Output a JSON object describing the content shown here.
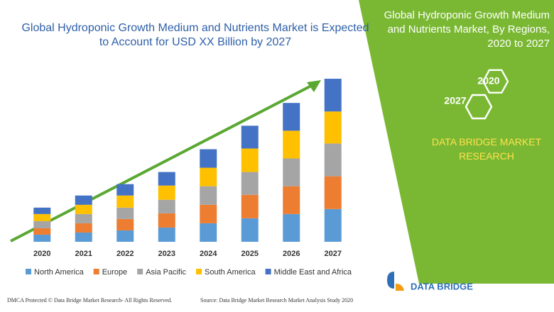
{
  "chart_data": {
    "type": "stacked-bar",
    "title": "Global Hydroponic Growth Medium and Nutrients Market is Expected to Account for USD XX Billion by 2027",
    "categories": [
      "2020",
      "2021",
      "2022",
      "2023",
      "2024",
      "2025",
      "2026",
      "2027"
    ],
    "series": [
      {
        "name": "North America",
        "color": "#5b9bd5",
        "values": [
          10,
          13,
          16,
          20,
          26,
          33,
          39,
          46
        ]
      },
      {
        "name": "Europe",
        "color": "#ed7d31",
        "values": [
          9,
          13,
          16,
          20,
          26,
          33,
          39,
          46
        ]
      },
      {
        "name": "Asia Pacific",
        "color": "#a5a5a5",
        "values": [
          10,
          13,
          16,
          19,
          26,
          32,
          39,
          46
        ]
      },
      {
        "name": "South America",
        "color": "#ffc000",
        "values": [
          10,
          13,
          17,
          20,
          26,
          33,
          39,
          45
        ]
      },
      {
        "name": "Middle East and Africa",
        "color": "#4472c4",
        "values": [
          9,
          13,
          16,
          19,
          26,
          32,
          39,
          46
        ]
      }
    ],
    "ylim": [
      0,
      240
    ]
  },
  "side_panel": {
    "title": "Global Hydroponic Growth Medium and Nutrients Market, By Regions, 2020 to 2027",
    "hexagons": [
      "2020",
      "2027"
    ],
    "brand": "DATA BRIDGE MARKET RESEARCH"
  },
  "footer": {
    "dmca": "DMCA Protected © Data Bridge Market Research- All Rights Reserved.",
    "source": "Source: Data Bridge Market Research Market Analysis Study 2020",
    "logo": "DATA BRIDGE"
  }
}
